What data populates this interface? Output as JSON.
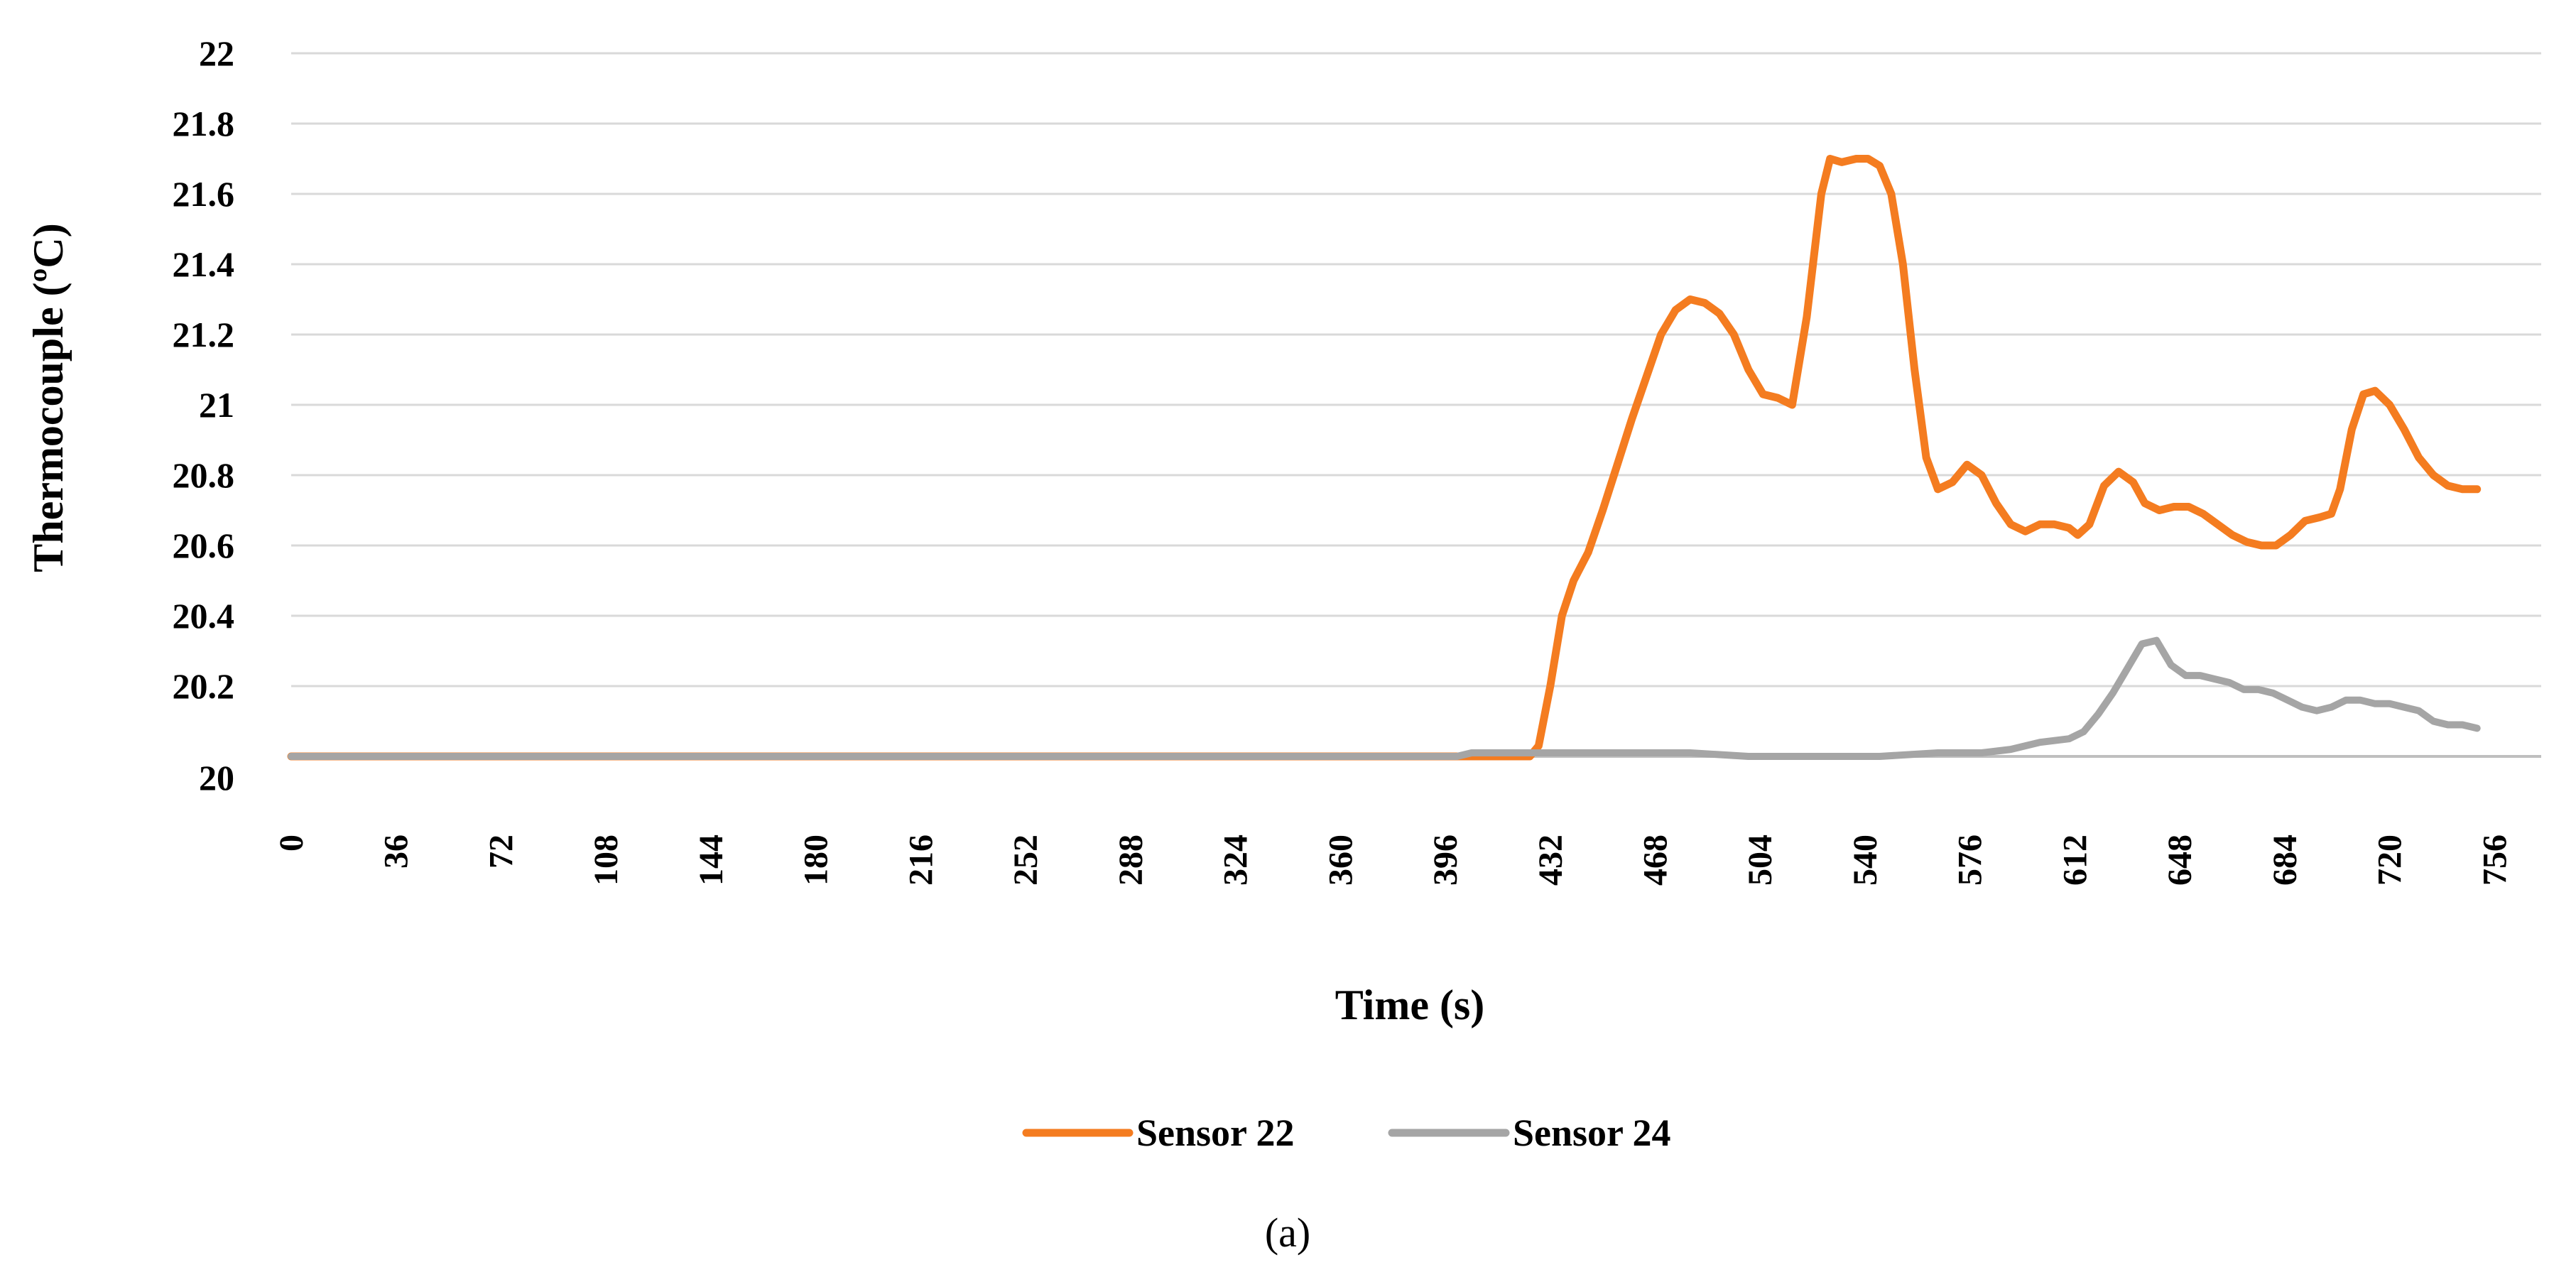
{
  "chart_data": {
    "type": "line",
    "title": "",
    "xlabel": "Time (s)",
    "ylabel": "Thermocouple (ºC)",
    "caption": "(a)",
    "x_ticks": [
      0,
      36,
      72,
      108,
      144,
      180,
      216,
      252,
      288,
      324,
      360,
      396,
      432,
      468,
      504,
      540,
      576,
      612,
      648,
      684,
      720,
      756
    ],
    "y_ticks": [
      "20",
      "20.2",
      "20.4",
      "20.6",
      "20.8",
      "21",
      "21.2",
      "21.4",
      "21.6",
      "21.8",
      "22"
    ],
    "xlim": [
      0,
      772
    ],
    "ylim": [
      20,
      22
    ],
    "grid": "horizontal",
    "legend": "bottom-center",
    "series": [
      {
        "name": "Sensor 22",
        "color": "#F47C20",
        "points": [
          [
            0,
            20
          ],
          [
            100,
            20
          ],
          [
            200,
            20
          ],
          [
            300,
            20
          ],
          [
            400,
            20
          ],
          [
            425,
            20
          ],
          [
            428,
            20.03
          ],
          [
            432,
            20.2
          ],
          [
            436,
            20.4
          ],
          [
            440,
            20.5
          ],
          [
            445,
            20.58
          ],
          [
            450,
            20.7
          ],
          [
            455,
            20.83
          ],
          [
            460,
            20.96
          ],
          [
            465,
            21.08
          ],
          [
            470,
            21.2
          ],
          [
            475,
            21.27
          ],
          [
            480,
            21.3
          ],
          [
            485,
            21.29
          ],
          [
            490,
            21.26
          ],
          [
            495,
            21.2
          ],
          [
            500,
            21.1
          ],
          [
            505,
            21.03
          ],
          [
            510,
            21.02
          ],
          [
            515,
            21.0
          ],
          [
            520,
            21.25
          ],
          [
            525,
            21.6
          ],
          [
            528,
            21.7
          ],
          [
            532,
            21.69
          ],
          [
            537,
            21.7
          ],
          [
            541,
            21.7
          ],
          [
            545,
            21.68
          ],
          [
            549,
            21.6
          ],
          [
            553,
            21.4
          ],
          [
            557,
            21.1
          ],
          [
            561,
            20.85
          ],
          [
            565,
            20.76
          ],
          [
            570,
            20.78
          ],
          [
            575,
            20.83
          ],
          [
            580,
            20.8
          ],
          [
            585,
            20.72
          ],
          [
            590,
            20.66
          ],
          [
            595,
            20.64
          ],
          [
            600,
            20.66
          ],
          [
            605,
            20.66
          ],
          [
            610,
            20.65
          ],
          [
            613,
            20.63
          ],
          [
            617,
            20.66
          ],
          [
            622,
            20.77
          ],
          [
            627,
            20.81
          ],
          [
            632,
            20.78
          ],
          [
            636,
            20.72
          ],
          [
            641,
            20.7
          ],
          [
            646,
            20.71
          ],
          [
            651,
            20.71
          ],
          [
            656,
            20.69
          ],
          [
            661,
            20.66
          ],
          [
            666,
            20.63
          ],
          [
            671,
            20.61
          ],
          [
            676,
            20.6
          ],
          [
            681,
            20.6
          ],
          [
            686,
            20.63
          ],
          [
            691,
            20.67
          ],
          [
            696,
            20.68
          ],
          [
            700,
            20.69
          ],
          [
            703,
            20.76
          ],
          [
            707,
            20.93
          ],
          [
            711,
            21.03
          ],
          [
            715,
            21.04
          ],
          [
            720,
            21.0
          ],
          [
            725,
            20.93
          ],
          [
            730,
            20.85
          ],
          [
            735,
            20.8
          ],
          [
            740,
            20.77
          ],
          [
            745,
            20.76
          ],
          [
            750,
            20.76
          ]
        ]
      },
      {
        "name": "Sensor 24",
        "color": "#A5A5A5",
        "points": [
          [
            0,
            20
          ],
          [
            100,
            20
          ],
          [
            200,
            20
          ],
          [
            300,
            20
          ],
          [
            400,
            20
          ],
          [
            405,
            20.01
          ],
          [
            430,
            20.01
          ],
          [
            480,
            20.01
          ],
          [
            500,
            20.0
          ],
          [
            545,
            20.0
          ],
          [
            565,
            20.01
          ],
          [
            580,
            20.01
          ],
          [
            590,
            20.02
          ],
          [
            600,
            20.04
          ],
          [
            610,
            20.05
          ],
          [
            615,
            20.07
          ],
          [
            620,
            20.12
          ],
          [
            625,
            20.18
          ],
          [
            630,
            20.25
          ],
          [
            635,
            20.32
          ],
          [
            640,
            20.33
          ],
          [
            645,
            20.26
          ],
          [
            650,
            20.23
          ],
          [
            655,
            20.23
          ],
          [
            660,
            20.22
          ],
          [
            665,
            20.21
          ],
          [
            670,
            20.19
          ],
          [
            675,
            20.19
          ],
          [
            680,
            20.18
          ],
          [
            685,
            20.16
          ],
          [
            690,
            20.14
          ],
          [
            695,
            20.13
          ],
          [
            700,
            20.14
          ],
          [
            705,
            20.16
          ],
          [
            710,
            20.16
          ],
          [
            715,
            20.15
          ],
          [
            720,
            20.15
          ],
          [
            725,
            20.14
          ],
          [
            730,
            20.13
          ],
          [
            735,
            20.1
          ],
          [
            740,
            20.09
          ],
          [
            745,
            20.09
          ],
          [
            750,
            20.08
          ]
        ]
      }
    ]
  }
}
